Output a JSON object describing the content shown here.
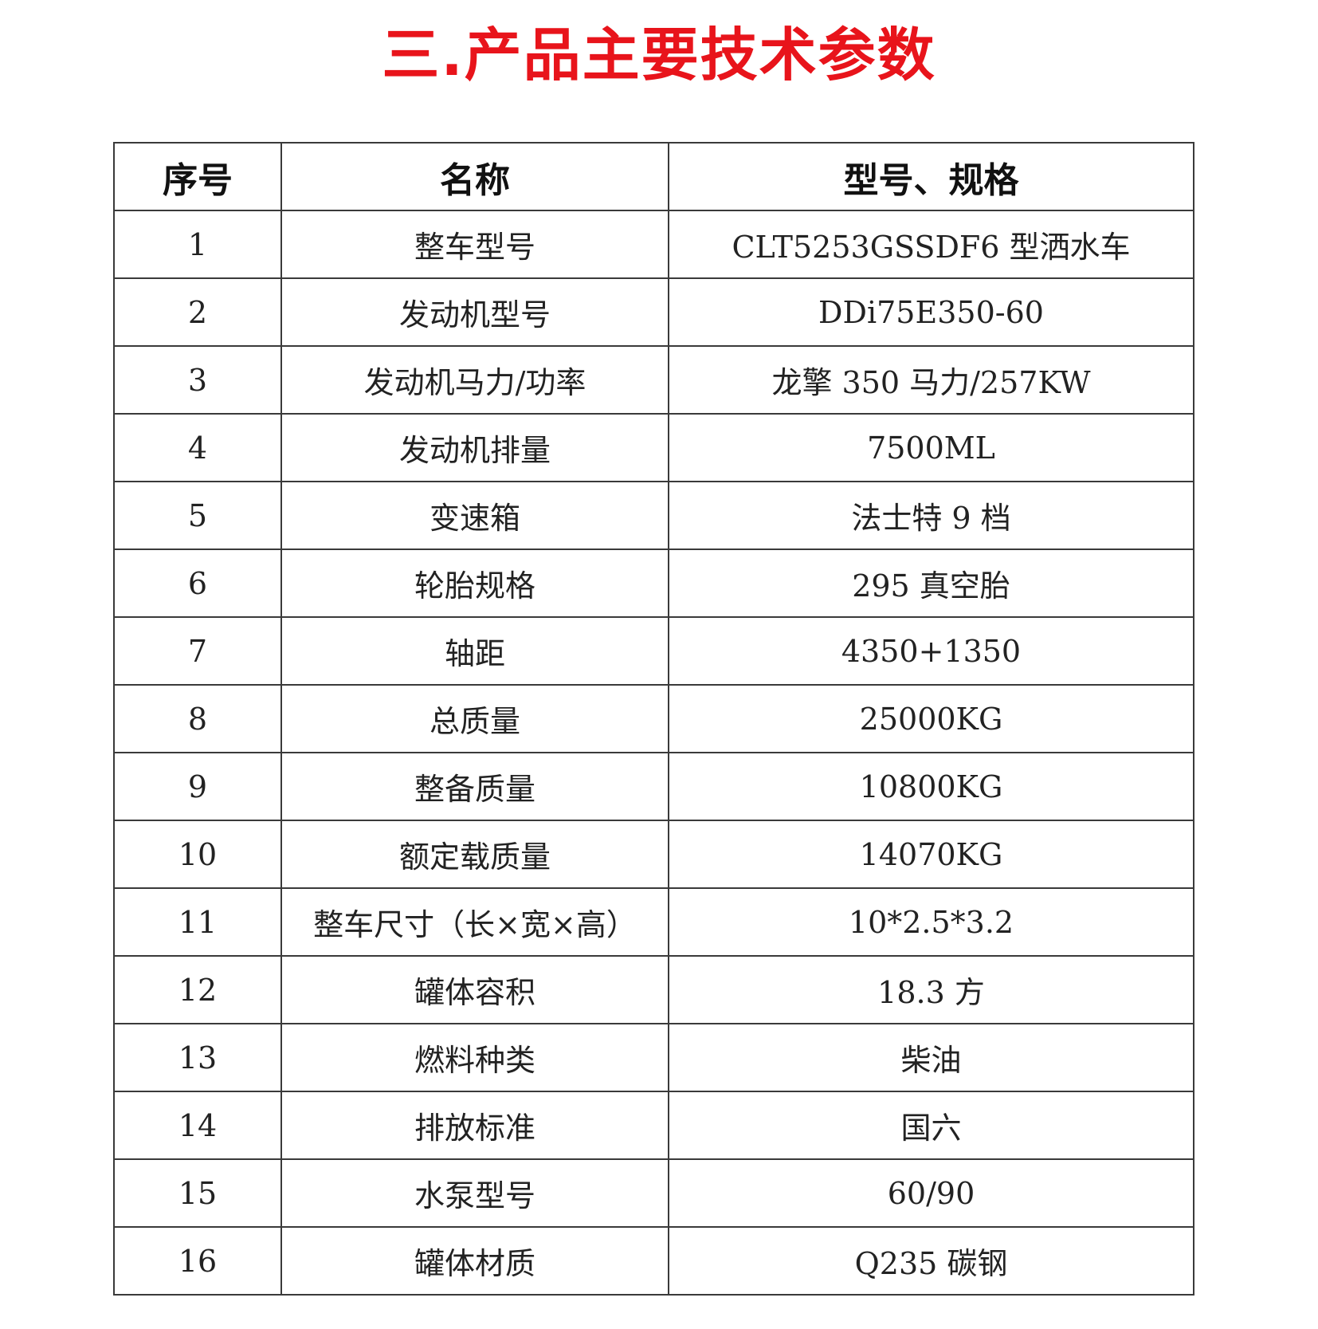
{
  "title": "三.产品主要技术参数",
  "table": {
    "headers": [
      "序号",
      "名称",
      "型号、规格"
    ],
    "rows": [
      [
        "1",
        "整车型号",
        "CLT5253GSSDF6 型洒水车"
      ],
      [
        "2",
        "发动机型号",
        "DDi75E350-60"
      ],
      [
        "3",
        "发动机马力/功率",
        "龙擎 350 马力/257KW"
      ],
      [
        "4",
        "发动机排量",
        "7500ML"
      ],
      [
        "5",
        "变速箱",
        "法士特 9 档"
      ],
      [
        "6",
        "轮胎规格",
        "295 真空胎"
      ],
      [
        "7",
        "轴距",
        "4350+1350"
      ],
      [
        "8",
        "总质量",
        "25000KG"
      ],
      [
        "9",
        "整备质量",
        "10800KG"
      ],
      [
        "10",
        "额定载质量",
        "14070KG"
      ],
      [
        "11",
        "整车尺寸（长×宽×高）",
        "10*2.5*3.2"
      ],
      [
        "12",
        "罐体容积",
        "18.3 方"
      ],
      [
        "13",
        "燃料种类",
        "柴油"
      ],
      [
        "14",
        "排放标准",
        "国六"
      ],
      [
        "15",
        "水泵型号",
        "60/90"
      ],
      [
        "16",
        "罐体材质",
        "Q235 碳钢"
      ]
    ]
  }
}
